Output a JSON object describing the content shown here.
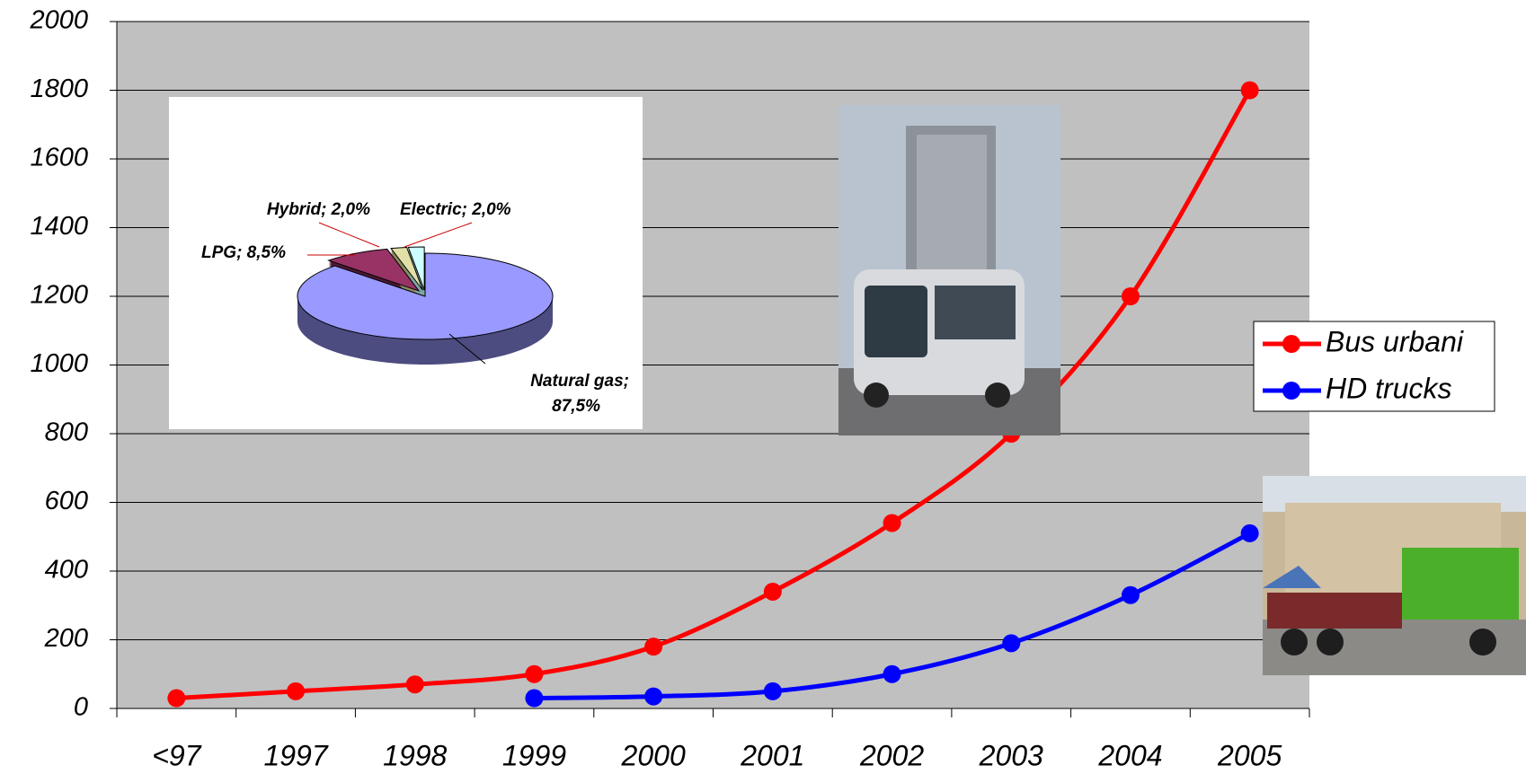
{
  "chart_data": [
    {
      "type": "line",
      "categories": [
        "<97",
        "1997",
        "1998",
        "1999",
        "2000",
        "2001",
        "2002",
        "2003",
        "2004",
        "2005"
      ],
      "series": [
        {
          "name": "Bus urbani",
          "color": "#ff0000",
          "values": [
            30,
            50,
            70,
            100,
            180,
            340,
            540,
            800,
            1200,
            1800
          ]
        },
        {
          "name": "HD trucks",
          "color": "#0000ff",
          "values": [
            null,
            null,
            null,
            30,
            35,
            50,
            100,
            190,
            330,
            510
          ]
        }
      ],
      "ylim": [
        0,
        2000
      ],
      "yticks": [
        0,
        200,
        400,
        600,
        800,
        1000,
        1200,
        1400,
        1600,
        1800,
        2000
      ],
      "grid": true,
      "legend": "right"
    },
    {
      "type": "pie",
      "values": [
        87.5,
        8.5,
        2.0,
        2.0
      ],
      "value_labels": [
        "Natural gas; 87,5%",
        "LPG; 8,5%",
        "Hybrid; 2,0%",
        "Electric; 2,0%"
      ],
      "colors": [
        "#9999ff",
        "#993366",
        "#e0e0a8",
        "#ccffff"
      ]
    }
  ]
}
